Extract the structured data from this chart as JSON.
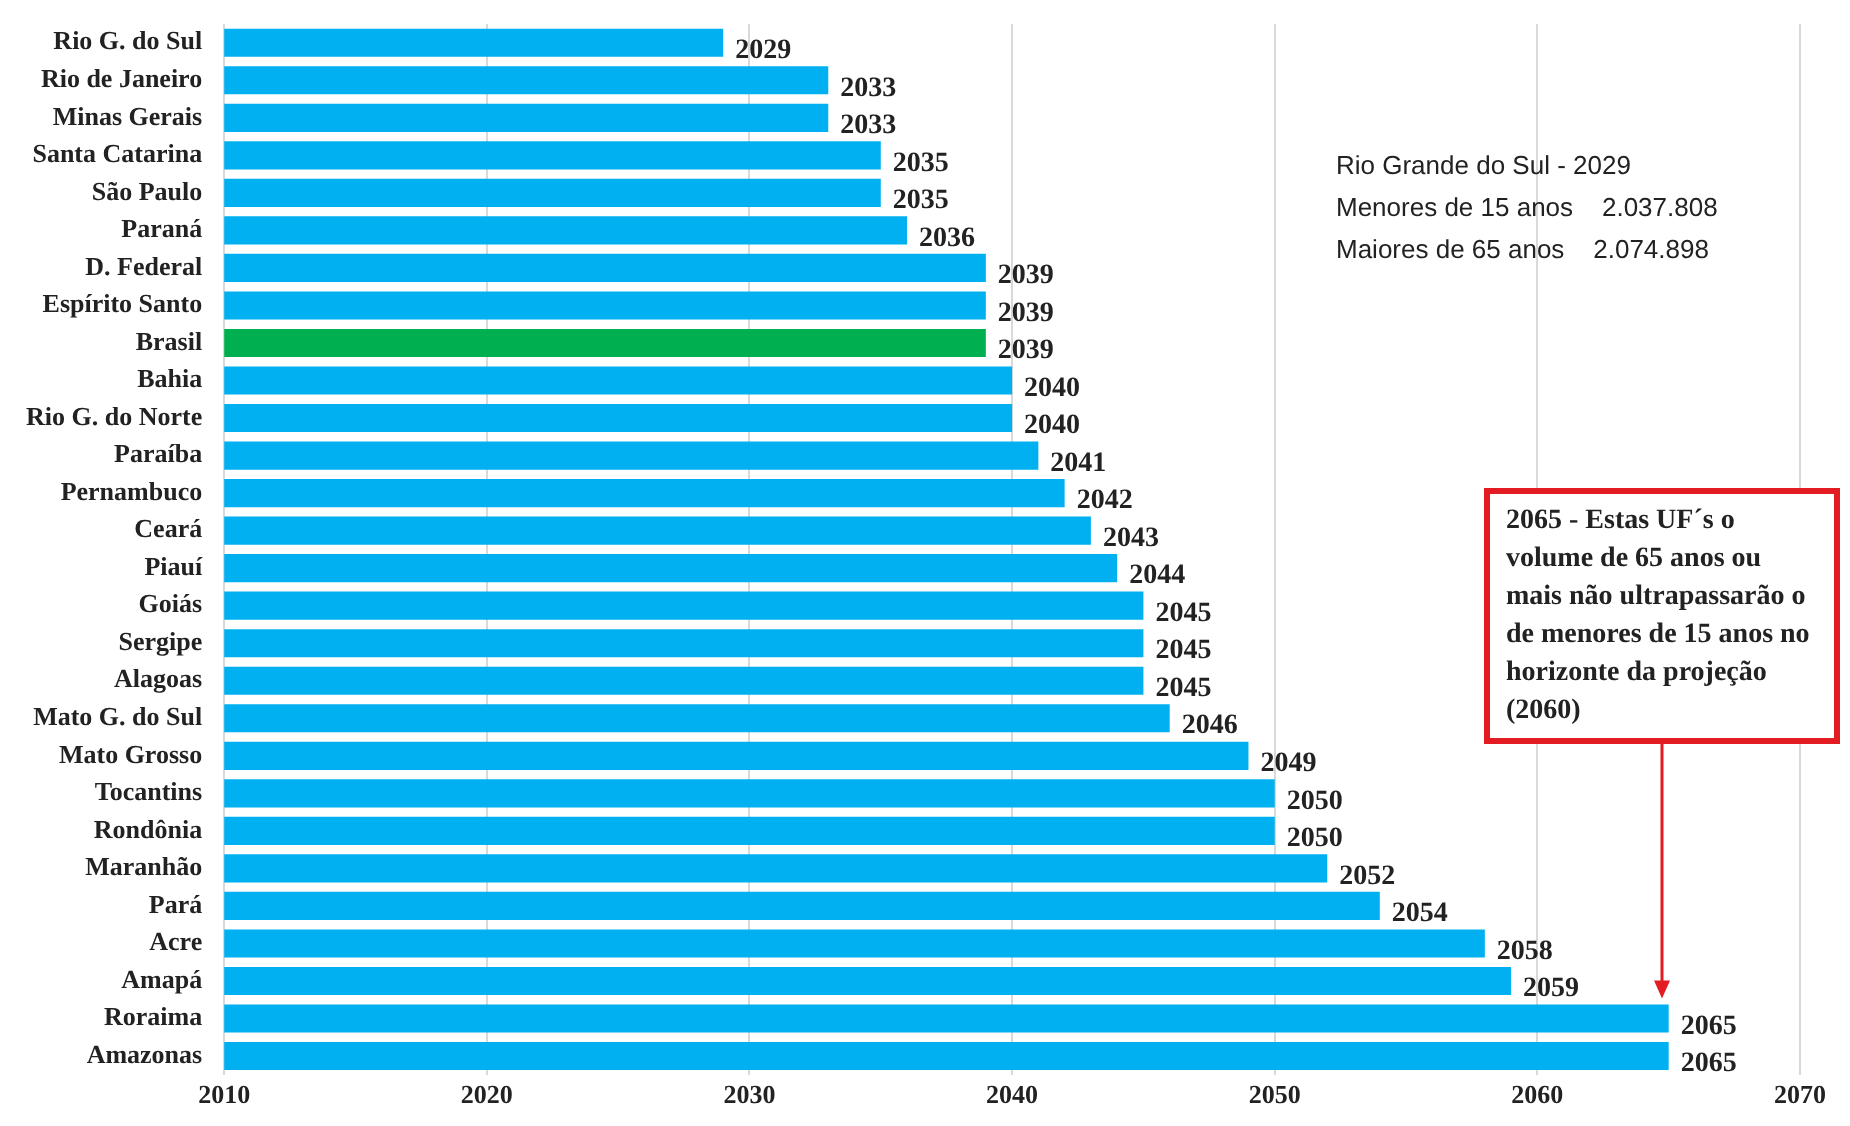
{
  "chart_data": {
    "type": "bar",
    "orientation": "horizontal",
    "categories": [
      "Rio G. do Sul",
      "Rio de Janeiro",
      "Minas Gerais",
      "Santa Catarina",
      "São Paulo",
      "Paraná",
      "D. Federal",
      "Espírito Santo",
      "Brasil",
      "Bahia",
      "Rio G. do Norte",
      "Paraíba",
      "Pernambuco",
      "Ceará",
      "Piauí",
      "Goiás",
      "Sergipe",
      "Alagoas",
      "Mato G. do Sul",
      "Mato Grosso",
      "Tocantins",
      "Rondônia",
      "Maranhão",
      "Pará",
      "Acre",
      "Amapá",
      "Roraima",
      "Amazonas"
    ],
    "values": [
      2029,
      2033,
      2033,
      2035,
      2035,
      2036,
      2039,
      2039,
      2039,
      2040,
      2040,
      2041,
      2042,
      2043,
      2044,
      2045,
      2045,
      2045,
      2046,
      2049,
      2050,
      2050,
      2052,
      2054,
      2058,
      2059,
      2065,
      2065
    ],
    "colors": [
      "#00b0f0",
      "#00b0f0",
      "#00b0f0",
      "#00b0f0",
      "#00b0f0",
      "#00b0f0",
      "#00b0f0",
      "#00b0f0",
      "#00b050",
      "#00b0f0",
      "#00b0f0",
      "#00b0f0",
      "#00b0f0",
      "#00b0f0",
      "#00b0f0",
      "#00b0f0",
      "#00b0f0",
      "#00b0f0",
      "#00b0f0",
      "#00b0f0",
      "#00b0f0",
      "#00b0f0",
      "#00b0f0",
      "#00b0f0",
      "#00b0f0",
      "#00b0f0",
      "#00b0f0",
      "#00b0f0"
    ],
    "xlim": [
      2010,
      2070
    ],
    "xticks": [
      2010,
      2020,
      2030,
      2040,
      2050,
      2060,
      2070
    ],
    "grid": "x",
    "data_labels": true,
    "legend": false,
    "annotations": [
      "Rio Grande do Sul - 2029",
      "Menores de 15 anos    2.037.808",
      "Maiores de 65 anos    2.074.898",
      "2065 - Estas UF´s o volume de 65 anos ou mais não ultrapassarão o de menores de 15 anos no horizonte da projeção (2060)"
    ]
  }
}
